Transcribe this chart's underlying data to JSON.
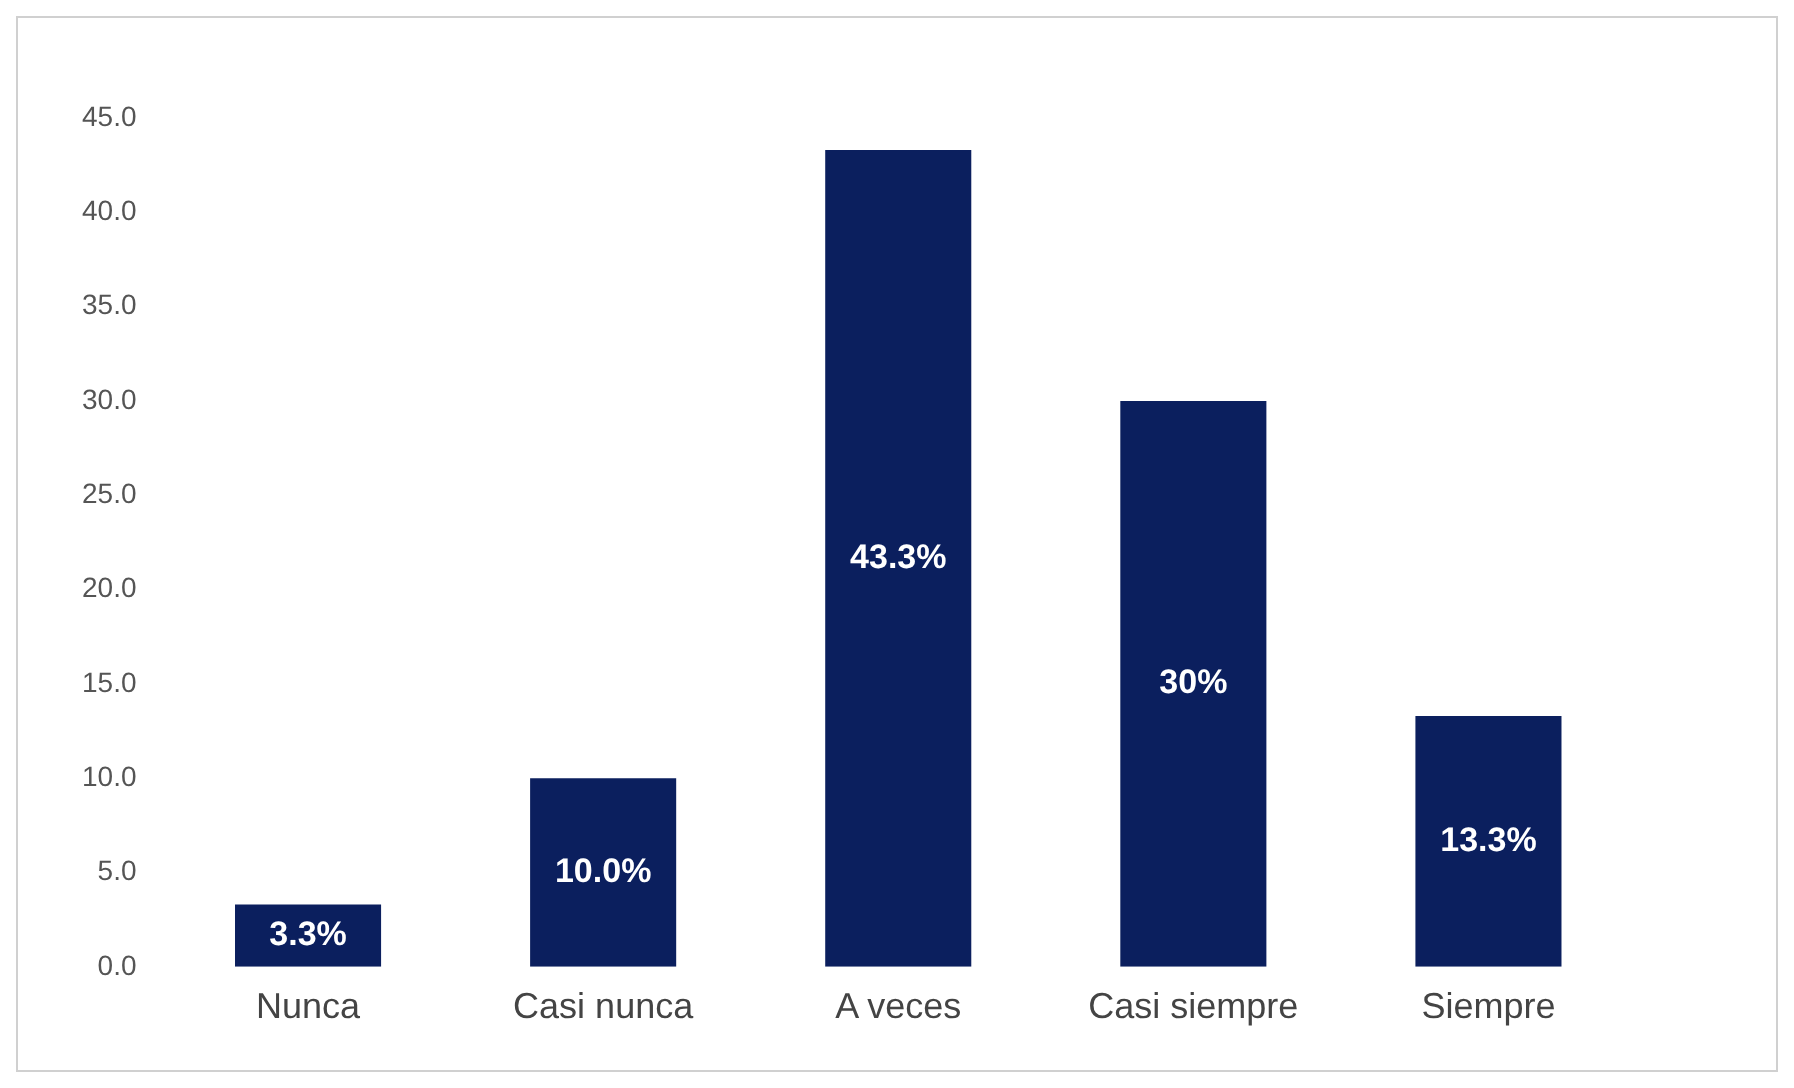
{
  "chart_data": {
    "type": "bar",
    "categories": [
      "Nunca",
      "Casi nunca",
      "A veces",
      "Casi siempre",
      "Siempre"
    ],
    "values": [
      3.3,
      10.0,
      43.3,
      30,
      13.3
    ],
    "value_labels": [
      "3.3%",
      "10.0%",
      "43.3%",
      "30%",
      "13.3%"
    ],
    "color": "#0b1f5e",
    "ylim": [
      0,
      45
    ],
    "yticks": [
      {
        "value": 0,
        "label": "0.0"
      },
      {
        "value": 5,
        "label": "5.0"
      },
      {
        "value": 10,
        "label": "10.0"
      },
      {
        "value": 15,
        "label": "15.0"
      },
      {
        "value": 20,
        "label": "20.0"
      },
      {
        "value": 25,
        "label": "25.0"
      },
      {
        "value": 30,
        "label": "30.0"
      },
      {
        "value": 35,
        "label": "35.0"
      },
      {
        "value": 40,
        "label": "40.0"
      },
      {
        "value": 45,
        "label": "45.0"
      }
    ],
    "grid": false,
    "legend": false
  }
}
